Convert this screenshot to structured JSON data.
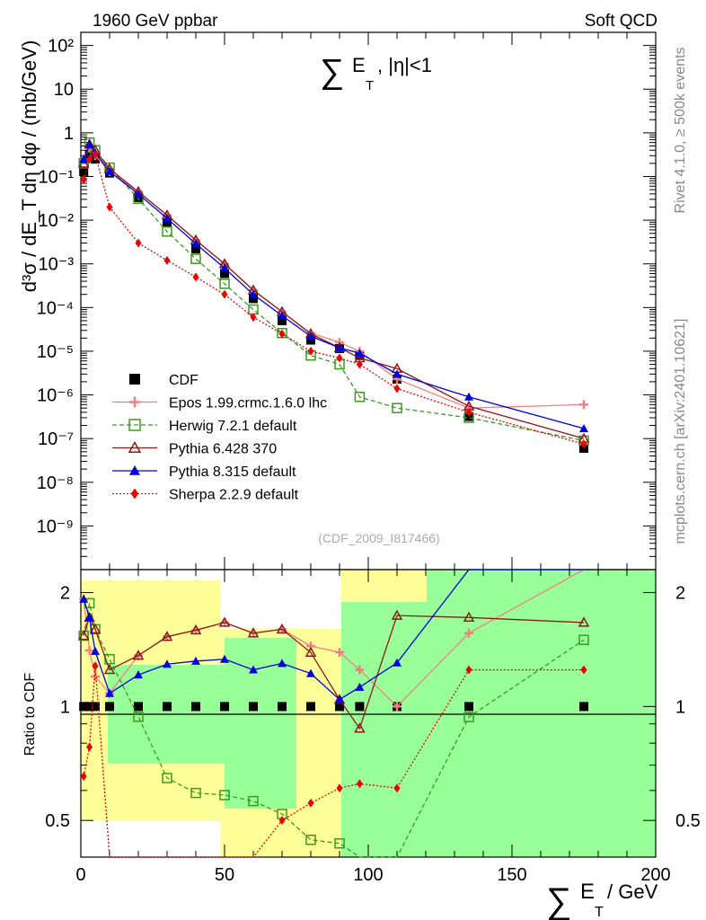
{
  "header": {
    "left": "1960 GeV ppbar",
    "right": "Soft QCD",
    "title_sigma": "∑",
    "title_E": "E",
    "title_T": "T",
    "title_rest": ", |η|<1",
    "analysis_id": "(CDF_2009_I817466)",
    "side_rivet": "Rivet 4.1.0, ≥ 500k events",
    "side_mcplots": "mcplots.cern.ch [arXiv:2401.10621]"
  },
  "colors": {
    "CDF": "#000000",
    "Epos": "#f08080",
    "Herwig": "#3a9a1e",
    "Pythia6": "#8b1a1a",
    "Pythia8": "#0000dd",
    "Sherpa": "#ee0000",
    "band_green": "#99ff99",
    "band_yellow": "#ffff99"
  },
  "chart_data": {
    "type": "scatter",
    "title": "∑ E_T, |η|<1",
    "xlabel": "∑ E_T / GeV",
    "ylabel_main": "d³σ / dE_T dη dφ / (mb/GeV)",
    "ylabel_ratio": "Ratio to CDF",
    "xlim": [
      0,
      200
    ],
    "ylim_main": [
      1e-10,
      200
    ],
    "yscale_main": "log",
    "ylim_ratio": [
      0.4,
      2.3
    ],
    "yscale_ratio": "log",
    "x_ticks": [
      "0",
      "50",
      "100",
      "150",
      "200"
    ],
    "y_ticks_main": [
      "10⁻⁹",
      "10⁻⁸",
      "10⁻⁷",
      "10⁻⁶",
      "10⁻⁵",
      "10⁻⁴",
      "10⁻³",
      "10⁻²",
      "10⁻¹",
      "1",
      "10",
      "10²"
    ],
    "y_ticks_ratio": [
      "0.5",
      "1",
      "2"
    ],
    "legend_position": "lower-left",
    "x": [
      1,
      3,
      5,
      10,
      20,
      30,
      40,
      50,
      60,
      70,
      80,
      90,
      97,
      110,
      135,
      175
    ],
    "series": [
      {
        "name": "CDF",
        "marker": "square",
        "values": [
          0.13,
          0.32,
          0.25,
          0.12,
          0.033,
          0.0085,
          0.0022,
          0.0006,
          0.00016,
          5e-05,
          1.8e-05,
          1.15e-05,
          8e-06,
          2.3e-06,
          3.2e-07,
          6e-08
        ]
      },
      {
        "name": "Epos 1.99.crmc.1.6.0 lhc",
        "marker": "cross",
        "values": [
          0.25,
          0.45,
          0.3,
          0.13,
          0.045,
          0.013,
          0.0035,
          0.001,
          0.00025,
          8e-05,
          2.6e-05,
          1.6e-05,
          1e-05,
          2.3e-06,
          5e-07,
          6e-07
        ]
      },
      {
        "name": "Herwig 7.2.1 default",
        "marker": "open-square",
        "values": [
          0.2,
          0.6,
          0.4,
          0.16,
          0.031,
          0.0055,
          0.0013,
          0.00035,
          9e-05,
          2.6e-05,
          8e-06,
          5e-06,
          9e-07,
          5e-07,
          3e-07,
          9e-08
        ]
      },
      {
        "name": "Pythia 6.428 370",
        "marker": "open-triangle",
        "values": [
          0.2,
          0.55,
          0.4,
          0.15,
          0.045,
          0.013,
          0.0035,
          0.001,
          0.00025,
          8e-05,
          2.5e-05,
          1.2e-05,
          7e-06,
          4e-06,
          5.5e-07,
          1e-07
        ]
      },
      {
        "name": "Pythia 8.315 default",
        "marker": "triangle",
        "values": [
          0.25,
          0.55,
          0.35,
          0.13,
          0.04,
          0.011,
          0.0029,
          0.0008,
          0.0002,
          6.5e-05,
          2.2e-05,
          1.2e-05,
          9e-06,
          3e-06,
          9e-07,
          1.7e-07
        ]
      },
      {
        "name": "Sherpa 2.2.9 default",
        "marker": "diamond",
        "values": [
          0.085,
          0.25,
          0.32,
          0.02,
          0.003,
          0.0012,
          0.0005,
          0.0002,
          6e-05,
          2.5e-05,
          1e-05,
          7e-06,
          5e-06,
          1.4e-06,
          4e-07,
          7.5e-08
        ]
      }
    ]
  }
}
